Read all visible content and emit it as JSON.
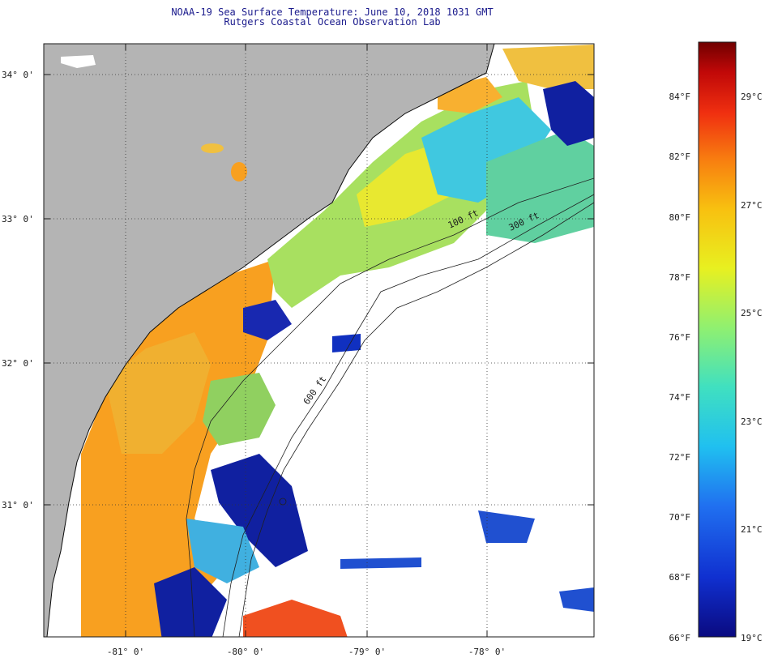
{
  "title_line1": "NOAA-19 Sea Surface Temperature:  June 10, 2018 1031 GMT",
  "title_line2": "Rutgers Coastal Ocean Observation Lab",
  "lat_labels": [
    "34° 0'",
    "33° 0'",
    "32° 0'",
    "31° 0'"
  ],
  "lon_labels": [
    "-81° 0'",
    "-80° 0'",
    "-79° 0'",
    "-78° 0'"
  ],
  "isobaths": [
    "100 ft",
    "300 ft",
    "600 ft"
  ],
  "colorbar": {
    "fahrenheit": [
      "84°F",
      "82°F",
      "80°F",
      "78°F",
      "76°F",
      "74°F",
      "72°F",
      "70°F",
      "68°F",
      "66°F"
    ],
    "celsius": [
      "29°C",
      "27°C",
      "25°C",
      "23°C",
      "21°C",
      "19°C"
    ],
    "colors": [
      "#0a0a80",
      "#1030d0",
      "#2070f0",
      "#20c0f0",
      "#40e0c0",
      "#90f070",
      "#e8f020",
      "#f8c010",
      "#f88010",
      "#f03010",
      "#c00808",
      "#700000"
    ]
  },
  "colors": {
    "land": "#b4b4b4",
    "clouds": "#ffffff",
    "warm_orange": "#f8a020",
    "yellow": "#f0e020",
    "green": "#90e060",
    "cyan": "#20c0e0",
    "cold_blue": "#1020a0"
  }
}
